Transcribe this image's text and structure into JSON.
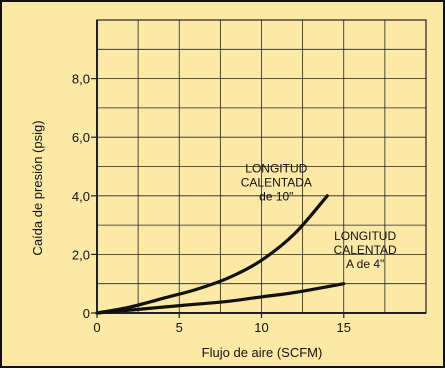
{
  "chart_data": {
    "type": "line",
    "xlabel": "Flujo de aire (SCFM)",
    "ylabel": "Caída de presión (psig)",
    "xlim": [
      0,
      20
    ],
    "ylim": [
      0,
      10
    ],
    "x_ticks": [
      {
        "value": 0,
        "label": "0"
      },
      {
        "value": 5,
        "label": "5"
      },
      {
        "value": 10,
        "label": "10"
      },
      {
        "value": 15,
        "label": "15"
      }
    ],
    "y_ticks": [
      {
        "value": 0,
        "label": "0"
      },
      {
        "value": 2,
        "label": "2,0"
      },
      {
        "value": 4,
        "label": "4,0"
      },
      {
        "value": 6,
        "label": "6,0"
      },
      {
        "value": 8,
        "label": "8,0"
      }
    ],
    "grid": true,
    "colors": {
      "background": "#fce9a6",
      "plot_area": "#fce9a6",
      "grid": "#222222",
      "curve": "#111111"
    },
    "series": [
      {
        "x": [
          0,
          2,
          4,
          6,
          8,
          10,
          12,
          14
        ],
        "y": [
          0,
          0.2,
          0.5,
          0.8,
          1.2,
          1.8,
          2.7,
          4.0
        ]
      },
      {
        "x": [
          0,
          2,
          4,
          6,
          8,
          10,
          12,
          15
        ],
        "y": [
          0,
          0.1,
          0.2,
          0.3,
          0.4,
          0.55,
          0.7,
          1.0
        ]
      }
    ],
    "annotations": [
      {
        "lines": [
          "LONGITUD",
          "CALENTADA",
          "de 10\""
        ],
        "anchor_x": 10.9,
        "anchor_y": 4.8
      },
      {
        "lines": [
          "LONGITUD",
          "CALENTAD",
          "A de 4\""
        ],
        "anchor_x": 16.3,
        "anchor_y": 2.5
      }
    ]
  }
}
